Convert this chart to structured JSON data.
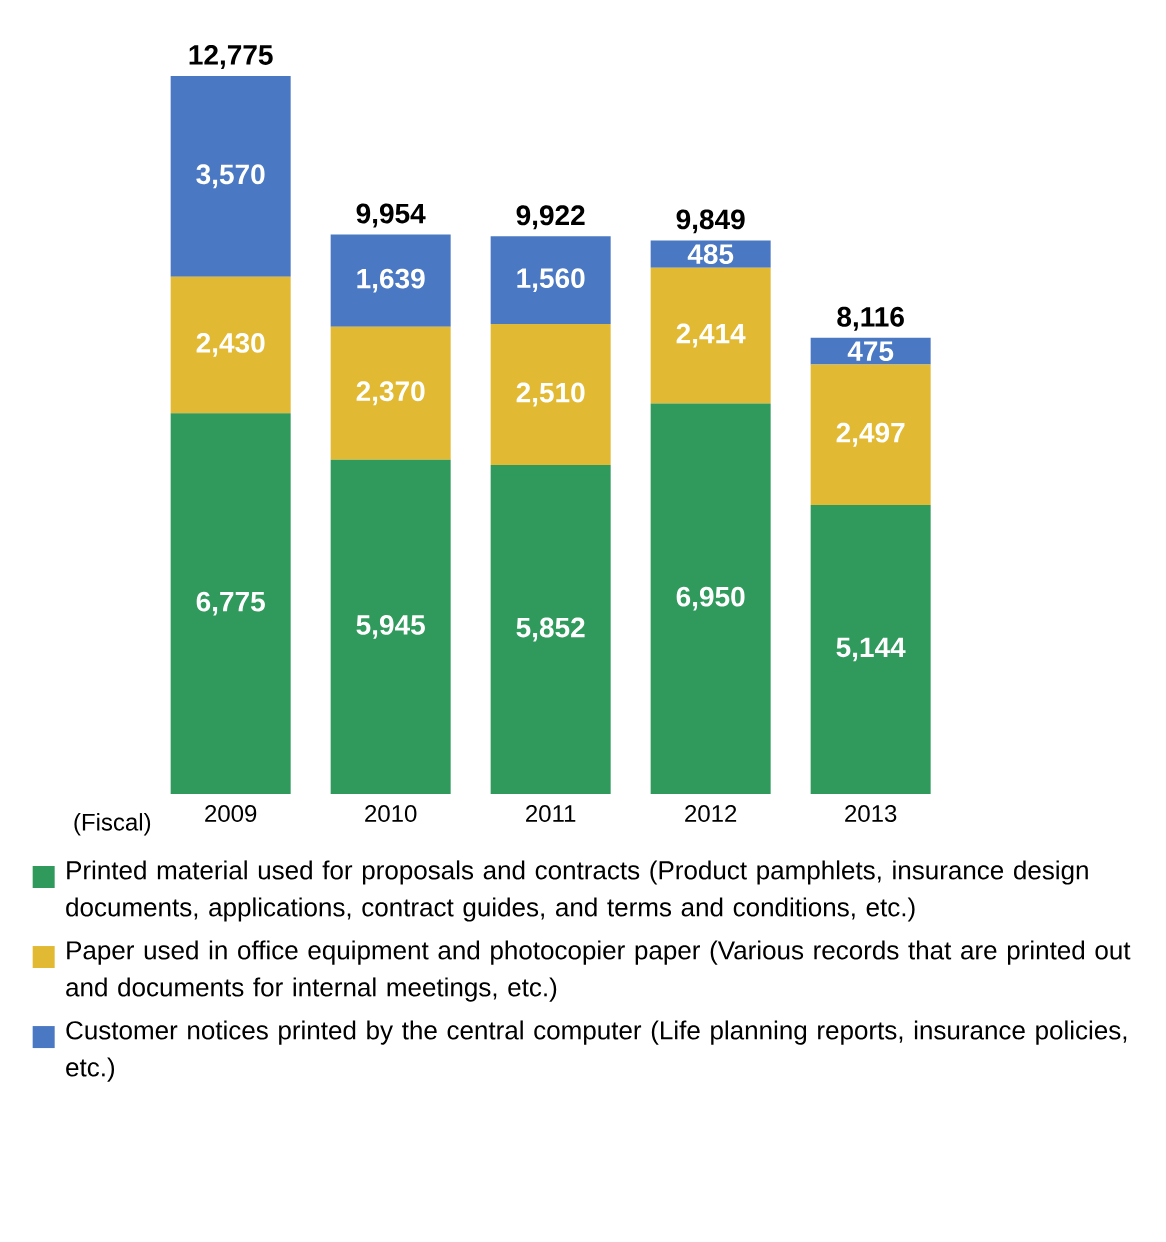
{
  "chart_data": {
    "type": "bar",
    "stacked": true,
    "xlabel": "(Fiscal)",
    "categories": [
      "2009",
      "2010",
      "2011",
      "2012",
      "2013"
    ],
    "legend": "bottom",
    "series": [
      {
        "name": "Printed material used for proposals and contracts (Product pamphlets, insurance design documents, applications, contract guides, and terms and conditions, etc.)",
        "color": "#2f9a5c",
        "values": [
          6775,
          5945,
          5852,
          6950,
          5144
        ],
        "value_labels": [
          "6,775",
          "5,945",
          "5,852",
          "6,950",
          "5,144"
        ]
      },
      {
        "name": "Paper used in office equipment and photocopier paper (Various records that are printed out and documents for internal meetings, etc.)",
        "color": "#e2b932",
        "values": [
          2430,
          2370,
          2510,
          2414,
          2497
        ],
        "value_labels": [
          "2,430",
          "2,370",
          "2,510",
          "2,414",
          "2,497"
        ]
      },
      {
        "name": "Customer notices printed by the central computer (Life planning reports, insurance policies, etc.)",
        "color": "#4a78c2",
        "values": [
          3570,
          1639,
          1560,
          485,
          475
        ],
        "value_labels": [
          "3,570",
          "1,639",
          "1,560",
          "485",
          "475"
        ]
      }
    ],
    "totals": [
      "12,775",
      "9,954",
      "9,922",
      "9,849",
      "8,116"
    ]
  }
}
